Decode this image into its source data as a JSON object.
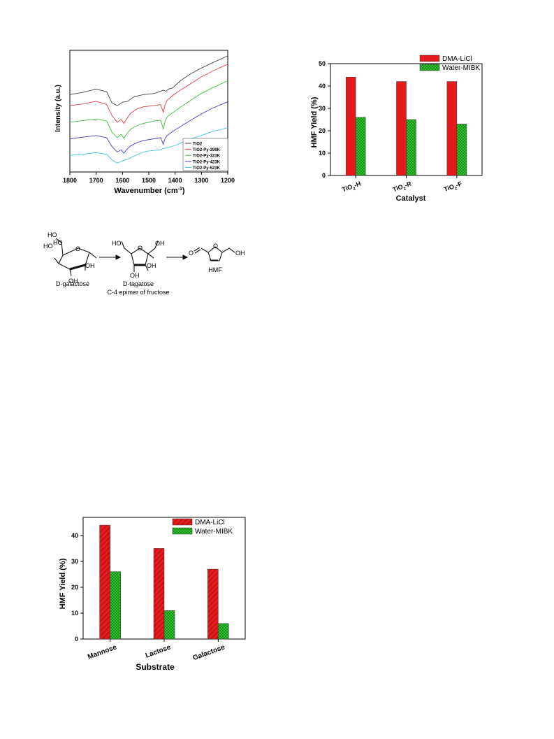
{
  "chart_data": [
    {
      "type": "line",
      "xlabel": "Wavenumber (cm⁻¹)",
      "ylabel": "Intensity (a.u.)",
      "xlim": [
        1800,
        1200
      ],
      "x_ticks": [
        1800,
        1700,
        1600,
        1500,
        1400,
        1300,
        1200
      ],
      "grid": false,
      "legend_position": "bottom-right",
      "series": [
        {
          "name": "TiO2",
          "color": "#444444",
          "x": [
            1800,
            1750,
            1700,
            1660,
            1640,
            1620,
            1600,
            1580,
            1560,
            1540,
            1520,
            1480,
            1460,
            1445,
            1435,
            1425,
            1410,
            1380,
            1340,
            1300,
            1260,
            1200
          ],
          "y": [
            1.0,
            1.04,
            1.1,
            1.05,
            0.85,
            0.8,
            0.86,
            0.88,
            0.95,
            0.98,
            1.0,
            1.02,
            1.05,
            1.08,
            1.06,
            1.1,
            1.12,
            1.25,
            1.38,
            1.48,
            1.57,
            1.7
          ]
        },
        {
          "name": "TiO2-Py-298K",
          "color": "#e04040",
          "x": [
            1800,
            1750,
            1700,
            1660,
            1640,
            1620,
            1605,
            1595,
            1585,
            1570,
            1545,
            1520,
            1480,
            1455,
            1445,
            1438,
            1430,
            1410,
            1380,
            1340,
            1300,
            1260,
            1200
          ],
          "y": [
            0.8,
            0.83,
            0.88,
            0.82,
            0.62,
            0.5,
            0.55,
            0.48,
            0.55,
            0.66,
            0.74,
            0.78,
            0.8,
            0.82,
            0.68,
            0.82,
            0.9,
            0.98,
            1.08,
            1.2,
            1.32,
            1.42,
            1.55
          ]
        },
        {
          "name": "TiO2-Py-323K",
          "color": "#3fbf3f",
          "x": [
            1800,
            1750,
            1700,
            1660,
            1640,
            1620,
            1605,
            1595,
            1585,
            1570,
            1545,
            1520,
            1480,
            1455,
            1445,
            1438,
            1430,
            1410,
            1380,
            1340,
            1300,
            1260,
            1200
          ],
          "y": [
            0.5,
            0.53,
            0.56,
            0.52,
            0.32,
            0.22,
            0.28,
            0.21,
            0.28,
            0.37,
            0.44,
            0.48,
            0.52,
            0.54,
            0.38,
            0.52,
            0.6,
            0.67,
            0.77,
            0.9,
            1.02,
            1.12,
            1.25
          ]
        },
        {
          "name": "TiO2-Py-423K",
          "color": "#4040c0",
          "x": [
            1800,
            1750,
            1700,
            1660,
            1640,
            1620,
            1605,
            1595,
            1585,
            1570,
            1545,
            1520,
            1480,
            1455,
            1445,
            1438,
            1430,
            1410,
            1380,
            1340,
            1300,
            1260,
            1200
          ],
          "y": [
            0.2,
            0.23,
            0.26,
            0.22,
            0.06,
            -0.04,
            0.0,
            -0.06,
            0.0,
            0.07,
            0.13,
            0.17,
            0.2,
            0.22,
            0.1,
            0.21,
            0.26,
            0.33,
            0.42,
            0.54,
            0.65,
            0.75,
            0.87
          ]
        },
        {
          "name": "TiO2-Py-523K",
          "color": "#40c8d8",
          "x": [
            1800,
            1750,
            1700,
            1660,
            1640,
            1620,
            1600,
            1580,
            1560,
            1540,
            1520,
            1500,
            1480,
            1460,
            1440,
            1420,
            1400,
            1370,
            1340,
            1300,
            1260,
            1200
          ],
          "y": [
            -0.1,
            -0.08,
            -0.05,
            -0.08,
            -0.18,
            -0.24,
            -0.2,
            -0.17,
            -0.12,
            -0.08,
            -0.04,
            -0.02,
            -0.01,
            0.0,
            0.03,
            0.05,
            0.08,
            0.14,
            0.2,
            0.26,
            0.33,
            0.4
          ]
        }
      ]
    },
    {
      "type": "bar",
      "xlabel": "Catalyst",
      "ylabel": "HMF Yield (%)",
      "ylim": [
        0,
        50
      ],
      "y_ticks": [
        0,
        10,
        20,
        30,
        40,
        50
      ],
      "categories": [
        {
          "base": "TiO",
          "sub": "2",
          "suffix": "-H"
        },
        {
          "base": "TiO",
          "sub": "2",
          "suffix": "-R"
        },
        {
          "base": "TiO",
          "sub": "2",
          "suffix": "-F"
        }
      ],
      "legend_position": "top-right",
      "series": [
        {
          "name": "DMA-LiCl",
          "color": "#e41a1c",
          "fill": "solid",
          "values": [
            44,
            42,
            42
          ]
        },
        {
          "name": "Water-MIBK",
          "color": "#33cc33",
          "fill": "crosshatch",
          "values": [
            26,
            25,
            23
          ]
        }
      ]
    },
    {
      "type": "bar",
      "xlabel": "Substrate",
      "ylabel": "HMF Yield (%)",
      "ylim": [
        0,
        47
      ],
      "y_ticks": [
        0,
        10,
        20,
        30,
        40
      ],
      "categories": [
        "Mannose",
        "Lactose",
        "Galactose"
      ],
      "legend_position": "top-right",
      "series": [
        {
          "name": "DMA-LiCl",
          "color": "#e41a1c",
          "fill": "diagonal",
          "values": [
            44,
            35,
            27
          ]
        },
        {
          "name": "Water-MIBK",
          "color": "#33cc33",
          "fill": "crosshatch",
          "values": [
            26,
            11,
            6
          ]
        }
      ]
    }
  ],
  "scheme": {
    "galactose": {
      "ho_top": "HO",
      "ho_left": "HO",
      "ho_ring": "HO",
      "oh_right": "OH",
      "oh_bottom": "OH",
      "name": "D-galactose"
    },
    "tagatose": {
      "ho_left": "HO",
      "oh_right": "OH",
      "o_ring": "O",
      "oh_mid": "OH",
      "oh_bottom": "OH",
      "name": "D-tagatose",
      "note": "C-4 epimer of fructose"
    },
    "hmf": {
      "o_ald": "O",
      "o_ring": "O",
      "oh": "OH",
      "name": "HMF"
    }
  }
}
